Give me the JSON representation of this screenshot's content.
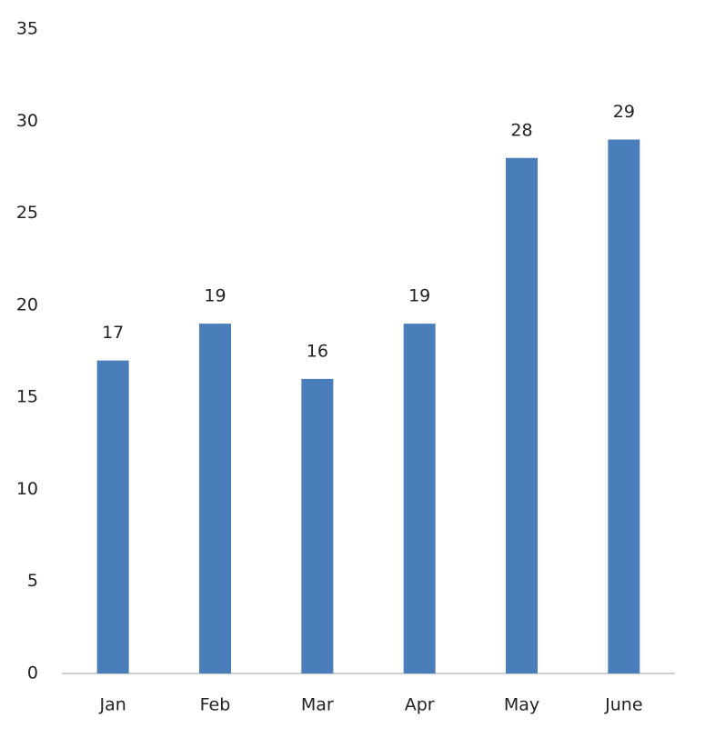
{
  "chart_data": {
    "type": "bar",
    "categories": [
      "Jan",
      "Feb",
      "Mar",
      "Apr",
      "May",
      "June"
    ],
    "values": [
      17,
      19,
      16,
      19,
      28,
      29
    ],
    "color": "#4a7ebb",
    "ylim": [
      0,
      35
    ],
    "yticks": [
      0,
      5,
      10,
      15,
      20,
      25,
      30,
      35
    ],
    "grid": false,
    "data_labels": true
  }
}
